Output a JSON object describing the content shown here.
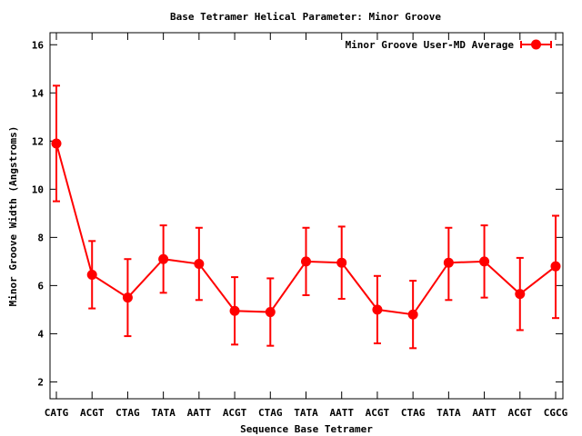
{
  "chart_data": {
    "type": "line",
    "title": "Base Tetramer Helical Parameter: Minor Groove",
    "xlabel": "Sequence Base Tetramer",
    "ylabel": "Minor Groove Width (Angstroms)",
    "categories": [
      "CATG",
      "ACGT",
      "CTAG",
      "TATA",
      "AATT",
      "ACGT",
      "CTAG",
      "TATA",
      "AATT",
      "ACGT",
      "CTAG",
      "TATA",
      "AATT",
      "ACGT",
      "CGCG"
    ],
    "ylim": [
      1.3,
      16.5
    ],
    "yticks": [
      2,
      4,
      6,
      8,
      10,
      12,
      14,
      16
    ],
    "grid": false,
    "legend_position": "top-right",
    "series": [
      {
        "name": "Minor Groove User-MD Average",
        "color": "#ff0000",
        "values": [
          11.9,
          6.45,
          5.5,
          7.1,
          6.9,
          4.95,
          4.9,
          7.0,
          6.95,
          5.0,
          4.8,
          6.95,
          7.0,
          5.65,
          6.8
        ],
        "error_low": [
          9.5,
          5.05,
          3.9,
          5.7,
          5.4,
          3.55,
          3.5,
          5.6,
          5.45,
          3.6,
          3.4,
          5.4,
          5.5,
          4.15,
          4.65
        ],
        "error_high": [
          14.3,
          7.85,
          7.1,
          8.5,
          8.4,
          6.35,
          6.3,
          8.4,
          8.45,
          6.4,
          6.2,
          8.4,
          8.5,
          7.15,
          8.9
        ]
      }
    ]
  }
}
